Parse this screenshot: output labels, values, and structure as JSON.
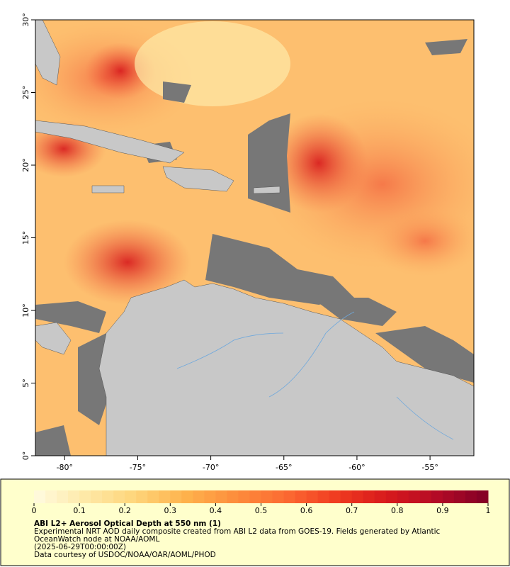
{
  "map": {
    "xlim": [
      -82,
      -52
    ],
    "ylim": [
      0,
      30
    ],
    "xticks": [
      {
        "value": -80,
        "label": "-80°"
      },
      {
        "value": -75,
        "label": "-75°"
      },
      {
        "value": -70,
        "label": "-70°"
      },
      {
        "value": -65,
        "label": "-65°"
      },
      {
        "value": -60,
        "label": "-60°"
      },
      {
        "value": -55,
        "label": "-55°"
      }
    ],
    "yticks": [
      {
        "value": 0,
        "label": "0°"
      },
      {
        "value": 5,
        "label": "5°"
      },
      {
        "value": 10,
        "label": "10°"
      },
      {
        "value": 15,
        "label": "15°"
      },
      {
        "value": 20,
        "label": "20°"
      },
      {
        "value": 25,
        "label": "25°"
      },
      {
        "value": 30,
        "label": "30°"
      }
    ]
  },
  "colorbar": {
    "clim": [
      0,
      1
    ],
    "ticks": [
      0,
      0.1,
      0.2,
      0.3,
      0.4,
      0.5,
      0.6,
      0.7,
      0.8,
      0.9,
      1
    ],
    "colors": [
      "#fffbe0",
      "#fee9a8",
      "#fed57a",
      "#feb24c",
      "#fd8d3c",
      "#fc6a32",
      "#f03b20",
      "#d7191c",
      "#b30a26",
      "#800026"
    ]
  },
  "caption": {
    "title": "ABI L2+ Aerosol Optical Depth at 550 nm (1)",
    "lines": [
      "Experimental NRT AOD daily composite created from ABI L2 data from GOES-19. Fields generated by Atlantic",
      "OceanWatch node at NOAA/AOML",
      "(2025-06-29T00:00:00Z)",
      "Data courtesy of USDOC/NOAA/OAR/AOML/PHOD"
    ]
  }
}
